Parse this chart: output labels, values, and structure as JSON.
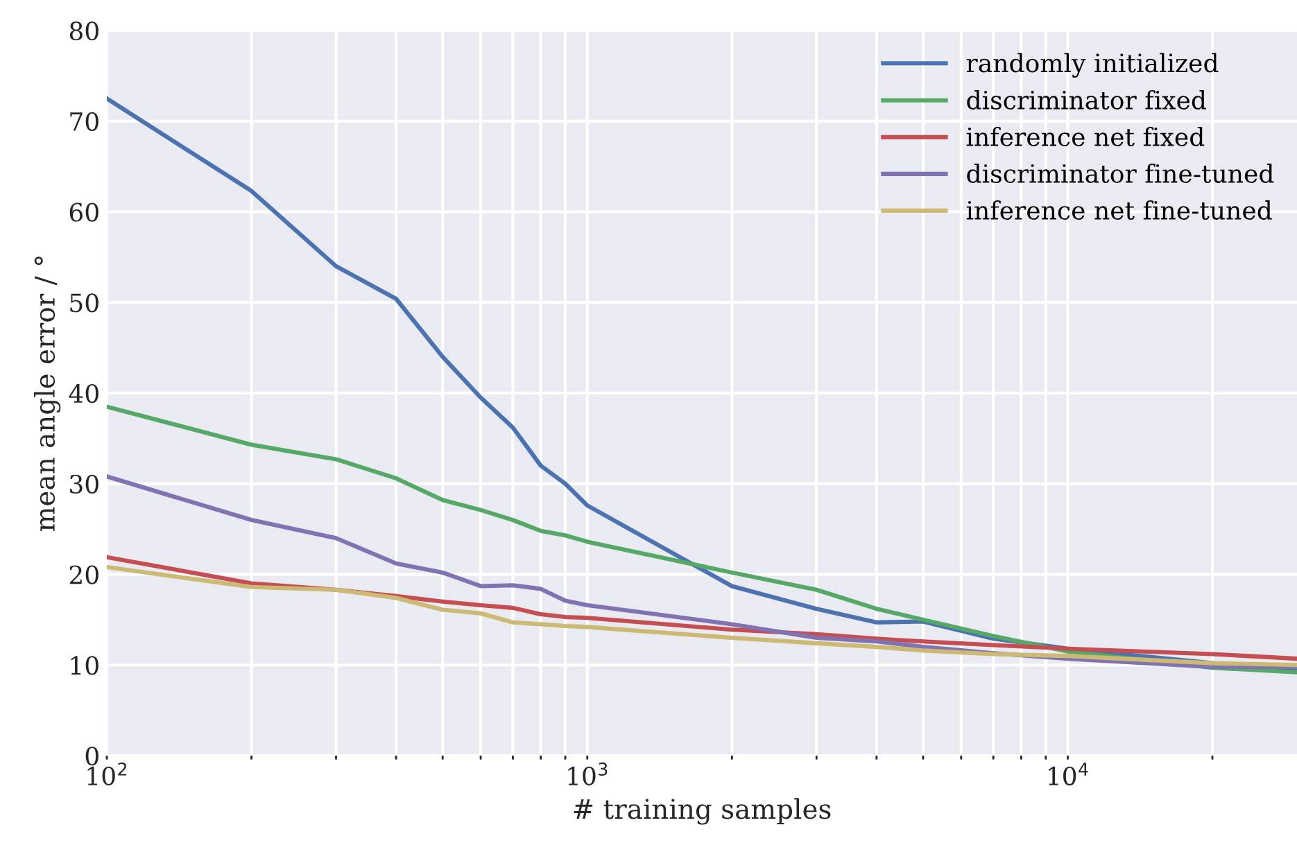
{
  "chart_data": {
    "type": "line",
    "xlabel": "# training samples",
    "ylabel": "mean angle error / °",
    "x": [
      100,
      200,
      300,
      400,
      500,
      600,
      700,
      800,
      900,
      1000,
      2000,
      3000,
      4000,
      5000,
      7000,
      10000,
      20000,
      30000
    ],
    "series": [
      {
        "name": "randomly initialized",
        "color": "#4c72b0",
        "values": [
          72.5,
          62.3,
          54,
          50.4,
          44,
          39.5,
          36.2,
          32,
          30,
          27.6,
          18.7,
          16.2,
          14.7,
          14.8,
          12.9,
          11.8,
          10.2,
          9.5
        ]
      },
      {
        "name": "discriminator fixed",
        "color": "#55a868",
        "values": [
          38.5,
          34.3,
          32.7,
          30.6,
          28.2,
          27.1,
          26,
          24.8,
          24.3,
          23.6,
          20.2,
          18.3,
          16.2,
          15,
          13.2,
          11.5,
          9.7,
          9.2
        ]
      },
      {
        "name": "inference net fixed",
        "color": "#c44e52",
        "values": [
          21.9,
          19,
          18.3,
          17.6,
          17,
          16.6,
          16.3,
          15.6,
          15.3,
          15.2,
          13.9,
          13.4,
          12.9,
          12.6,
          12.2,
          11.8,
          11.2,
          10.7
        ]
      },
      {
        "name": "discriminator fine-tuned",
        "color": "#8172b2",
        "values": [
          30.8,
          26,
          24,
          21.2,
          20.2,
          18.7,
          18.8,
          18.4,
          17.1,
          16.6,
          14.5,
          13,
          12.6,
          12,
          11.3,
          10.7,
          9.8,
          9.8
        ]
      },
      {
        "name": "inference net fine-tuned",
        "color": "#ccb974",
        "values": [
          20.8,
          18.6,
          18.3,
          17.4,
          16.1,
          15.7,
          14.7,
          14.5,
          14.3,
          14.2,
          13,
          12.4,
          12,
          11.6,
          11.2,
          11,
          10.2,
          10
        ]
      }
    ],
    "log": "x",
    "xlim": [
      100,
      30000
    ],
    "xticks": [
      {
        "value": 100,
        "label": "10$^{2}$"
      },
      {
        "value": 200,
        "label": null
      },
      {
        "value": 300,
        "label": null
      },
      {
        "value": 400,
        "label": null
      },
      {
        "value": 500,
        "label": null
      },
      {
        "value": 600,
        "label": null
      },
      {
        "value": 700,
        "label": null
      },
      {
        "value": 800,
        "label": null
      },
      {
        "value": 900,
        "label": null
      },
      {
        "value": 1000,
        "label": "10$^{3}$"
      },
      {
        "value": 2000,
        "label": null
      },
      {
        "value": 3000,
        "label": null
      },
      {
        "value": 4000,
        "label": null
      },
      {
        "value": 5000,
        "label": null
      },
      {
        "value": 6000,
        "label": null
      },
      {
        "value": 7000,
        "label": null
      },
      {
        "value": 8000,
        "label": null
      },
      {
        "value": 9000,
        "label": null
      },
      {
        "value": 10000,
        "label": "10$^{4}$"
      },
      {
        "value": 20000,
        "label": null
      }
    ],
    "ylim": [
      0,
      80
    ],
    "yticks": [
      0,
      10,
      20,
      30,
      40,
      50,
      60,
      70,
      80
    ],
    "grid": true,
    "legend": "top right",
    "marker": "none",
    "line_style": "solid"
  }
}
